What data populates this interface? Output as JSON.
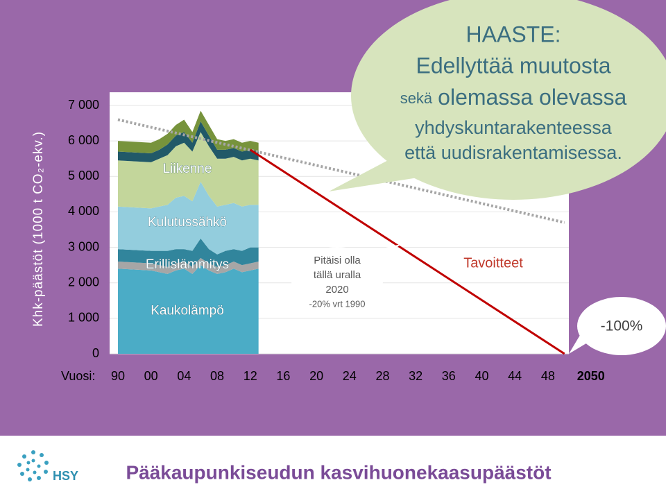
{
  "chart_data": {
    "type": "area",
    "y_label": "Khk-päästöt (1000 t CO₂-ekv.)",
    "x_label": "Vuosi:",
    "ylim": [
      0,
      7000
    ],
    "yticks": [
      0,
      {
        "value": 1000,
        "label": "1 000"
      },
      {
        "value": 2000,
        "label": "2 000"
      },
      {
        "value": 3000,
        "label": "3 000"
      },
      {
        "value": 4000,
        "label": "4 000"
      },
      {
        "value": 5000,
        "label": "5 000"
      },
      {
        "value": 6000,
        "label": "6 000"
      },
      {
        "value": 7000,
        "label": "7 000"
      }
    ],
    "xticks": [
      {
        "value": 1990,
        "label": "90"
      },
      {
        "value": 2000,
        "label": "00"
      },
      {
        "value": 2004,
        "label": "04"
      },
      {
        "value": 2008,
        "label": "08"
      },
      {
        "value": 2012,
        "label": "12"
      },
      {
        "value": 2016,
        "label": "16"
      },
      {
        "value": 2020,
        "label": "20"
      },
      {
        "value": 2024,
        "label": "24"
      },
      {
        "value": 2028,
        "label": "28"
      },
      {
        "value": 2032,
        "label": "32"
      },
      {
        "value": 2036,
        "label": "36"
      },
      {
        "value": 2040,
        "label": "40"
      },
      {
        "value": 2044,
        "label": "44"
      },
      {
        "value": 2048,
        "label": "48"
      },
      2050
    ],
    "grid": true,
    "x": [
      1990,
      2000,
      2001,
      2002,
      2003,
      2004,
      2005,
      2006,
      2007,
      2008,
      2009,
      2010,
      2011,
      2012,
      2013
    ],
    "series": [
      {
        "name": "Kaukolämpö",
        "color": "#4bacc6",
        "values": [
          2400,
          2350,
          2300,
          2250,
          2350,
          2400,
          2250,
          2500,
          2350,
          2250,
          2300,
          2400,
          2300,
          2350,
          2400
        ]
      },
      {
        "name": "Erillislämmitys",
        "color": "#a6a6a6",
        "values": [
          200,
          200,
          200,
          200,
          200,
          200,
          200,
          200,
          200,
          200,
          200,
          200,
          200,
          200,
          200
        ]
      },
      {
        "color": "#31859c",
        "values": [
          350,
          350,
          400,
          450,
          400,
          350,
          450,
          550,
          400,
          350,
          400,
          350,
          400,
          450,
          400
        ]
      },
      {
        "name": "Kulutussähkö",
        "color": "#93cddd",
        "values": [
          1200,
          1200,
          1250,
          1300,
          1450,
          1500,
          1400,
          1600,
          1500,
          1350,
          1300,
          1300,
          1250,
          1200,
          1200
        ]
      },
      {
        "name": "Liikenne",
        "color": "#c3d69b",
        "values": [
          1300,
          1300,
          1350,
          1400,
          1450,
          1500,
          1400,
          1400,
          1400,
          1350,
          1300,
          1300,
          1300,
          1300,
          1250
        ]
      },
      {
        "color": "#215968",
        "values": [
          250,
          250,
          250,
          300,
          300,
          300,
          250,
          300,
          300,
          250,
          250,
          250,
          250,
          250,
          250
        ]
      },
      {
        "color": "#77933c",
        "values": [
          300,
          300,
          300,
          300,
          300,
          350,
          300,
          300,
          300,
          300,
          250,
          250,
          250,
          250,
          250
        ]
      }
    ],
    "lines": [
      {
        "color": "#a6a6a6",
        "style": "dotted",
        "x": [
          1990,
          2050
        ],
        "values": [
          6600,
          3700
        ]
      },
      {
        "color": "#c00000",
        "style": "solid",
        "x": [
          2012,
          2050
        ],
        "values": [
          5750,
          0
        ]
      }
    ],
    "annotations": {
      "challenge": [
        "HAASTE:",
        "Edellyttää muutosta",
        [
          "sekä",
          "olemassa olevassa"
        ],
        "yhdyskuntarakenteessa",
        "että uudisrakentamisessa."
      ],
      "path_note": [
        "Pitäisi olla",
        "tällä uralla",
        "2020",
        "-20% vrt 1990"
      ],
      "targets": "Tavoitteet",
      "final": "-100%"
    }
  },
  "footer": {
    "logo_text": "HSY",
    "title": "Pääkaupunkiseudun kasvihuonekaasupäästöt"
  }
}
